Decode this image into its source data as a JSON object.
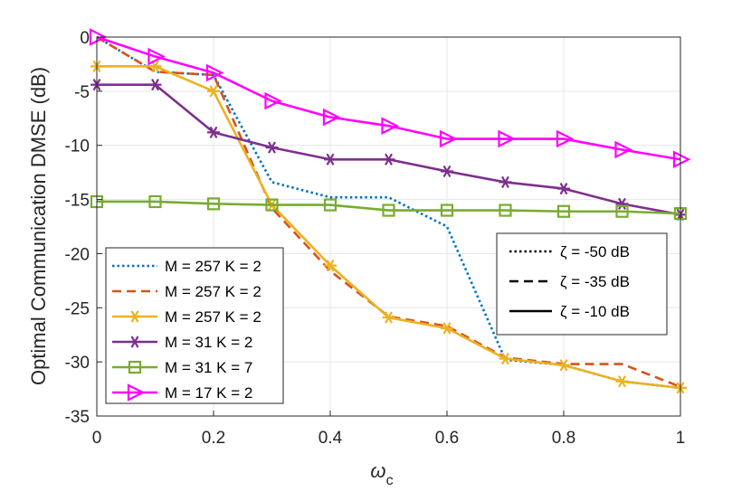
{
  "chart_data": {
    "type": "line",
    "ylabel": "Optimal Communication DMSE (dB)",
    "xlabel_main": "ω",
    "xlabel_sub": "c",
    "xlim": [
      0,
      1
    ],
    "ylim": [
      -35,
      0
    ],
    "xticks": [
      "0",
      "0.2",
      "0.4",
      "0.6",
      "0.8",
      "1"
    ],
    "yticks": [
      "0",
      "-5",
      "-10",
      "-15",
      "-20",
      "-25",
      "-30",
      "-35"
    ],
    "grid": true,
    "x": [
      0,
      0.1,
      0.2,
      0.3,
      0.4,
      0.5,
      0.6,
      0.7,
      0.8,
      0.9,
      1.0
    ],
    "series": [
      {
        "name": "M = 257 K = 2",
        "color": "#0072BD",
        "style": "dotted",
        "marker": "none",
        "values": [
          0,
          -3.2,
          -3.5,
          -13.4,
          -14.8,
          -14.8,
          -17.5,
          -29.8,
          -30.3,
          -31.8,
          -32.4
        ]
      },
      {
        "name": "M = 257 K = 2",
        "color": "#D95319",
        "style": "dashed",
        "marker": "none",
        "values": [
          0,
          -3.2,
          -3.5,
          -15.8,
          -21.6,
          -25.8,
          -26.7,
          -29.6,
          -30.2,
          -30.2,
          -32.3
        ]
      },
      {
        "name": "M = 257 K = 2",
        "color": "#EDB120",
        "style": "solid",
        "marker": "asterisk",
        "values": [
          -2.7,
          -2.7,
          -5.0,
          -15.5,
          -21.1,
          -25.9,
          -26.9,
          -29.7,
          -30.3,
          -31.8,
          -32.4
        ]
      },
      {
        "name": "M = 31 K = 2",
        "color": "#7E2F8E",
        "style": "solid",
        "marker": "asterisk",
        "values": [
          -4.4,
          -4.4,
          -8.8,
          -10.2,
          -11.3,
          -11.3,
          -12.4,
          -13.4,
          -14.0,
          -15.4,
          -16.4
        ]
      },
      {
        "name": "M = 31 K = 7",
        "color": "#77AC30",
        "style": "solid",
        "marker": "square",
        "values": [
          -15.2,
          -15.2,
          -15.4,
          -15.5,
          -15.5,
          -16.0,
          -16.0,
          -16.0,
          -16.1,
          -16.1,
          -16.3
        ]
      },
      {
        "name": "M = 17 K = 2",
        "color": "#FF00FF",
        "style": "solid",
        "marker": "triangle-right",
        "values": [
          0,
          -1.8,
          -3.3,
          -5.9,
          -7.4,
          -8.2,
          -9.4,
          -9.4,
          -9.4,
          -10.4,
          -11.3
        ]
      }
    ],
    "style_legend": [
      {
        "label": "ζ = -50 dB",
        "style": "dotted"
      },
      {
        "label": "ζ = -35 dB",
        "style": "dashed"
      },
      {
        "label": "ζ = -10 dB",
        "style": "solid"
      }
    ]
  }
}
